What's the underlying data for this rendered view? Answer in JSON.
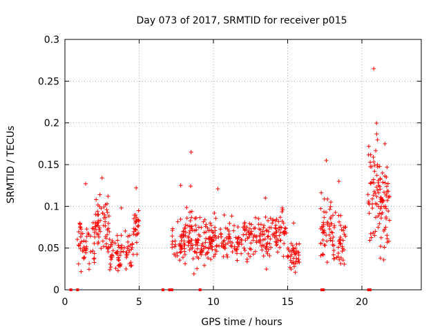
{
  "chart_data": {
    "type": "scatter",
    "title": "Day 073 of 2017, SRMTID for receiver p015",
    "xlabel": "GPS time / hours",
    "ylabel": "SRMTID / TECUs",
    "xlim": [
      0,
      24
    ],
    "ylim": [
      0,
      0.3
    ],
    "x_ticks": [
      0,
      5,
      10,
      15,
      20
    ],
    "x_tick_labels": [
      "0",
      "5",
      "10",
      "15",
      "20"
    ],
    "y_ticks": [
      0,
      0.05,
      0.1,
      0.15,
      0.2,
      0.25,
      0.3
    ],
    "y_tick_labels": [
      "0",
      "0.05",
      "0.1",
      "0.15",
      "0.2",
      "0.25",
      "0.3"
    ],
    "grid": true,
    "marker": "+",
    "color": "#ff0000",
    "seed": 73,
    "segments": [
      {
        "start": 0.8,
        "end": 2.0,
        "n": 50,
        "base": 0.055,
        "spread": 0.025,
        "max": 0.127
      },
      {
        "start": 2.0,
        "end": 3.0,
        "n": 60,
        "base": 0.075,
        "spread": 0.03,
        "max": 0.134
      },
      {
        "start": 3.0,
        "end": 4.6,
        "n": 70,
        "base": 0.045,
        "spread": 0.022,
        "max": 0.098
      },
      {
        "start": 4.6,
        "end": 5.0,
        "n": 25,
        "base": 0.08,
        "spread": 0.025,
        "max": 0.122
      },
      {
        "start": 7.2,
        "end": 8.4,
        "n": 60,
        "base": 0.06,
        "spread": 0.025,
        "max": 0.125
      },
      {
        "start": 8.4,
        "end": 8.6,
        "n": 18,
        "base": 0.085,
        "spread": 0.04,
        "max": 0.165
      },
      {
        "start": 8.6,
        "end": 12.0,
        "n": 160,
        "base": 0.058,
        "spread": 0.022,
        "max": 0.121
      },
      {
        "start": 12.0,
        "end": 15.0,
        "n": 140,
        "base": 0.065,
        "spread": 0.022,
        "max": 0.11
      },
      {
        "start": 15.0,
        "end": 15.8,
        "n": 40,
        "base": 0.04,
        "spread": 0.015,
        "max": 0.08
      },
      {
        "start": 17.2,
        "end": 18.0,
        "n": 45,
        "base": 0.075,
        "spread": 0.03,
        "max": 0.155
      },
      {
        "start": 18.0,
        "end": 18.9,
        "n": 45,
        "base": 0.06,
        "spread": 0.025,
        "max": 0.13
      },
      {
        "start": 20.4,
        "end": 21.2,
        "n": 55,
        "base": 0.12,
        "spread": 0.05,
        "max": 0.265
      },
      {
        "start": 21.2,
        "end": 21.9,
        "n": 55,
        "base": 0.1,
        "spread": 0.04,
        "max": 0.175
      }
    ],
    "zero_markers": [
      0.4,
      0.85,
      6.6,
      7.05,
      7.2,
      9.1,
      17.3,
      17.4,
      20.45,
      20.55
    ]
  }
}
